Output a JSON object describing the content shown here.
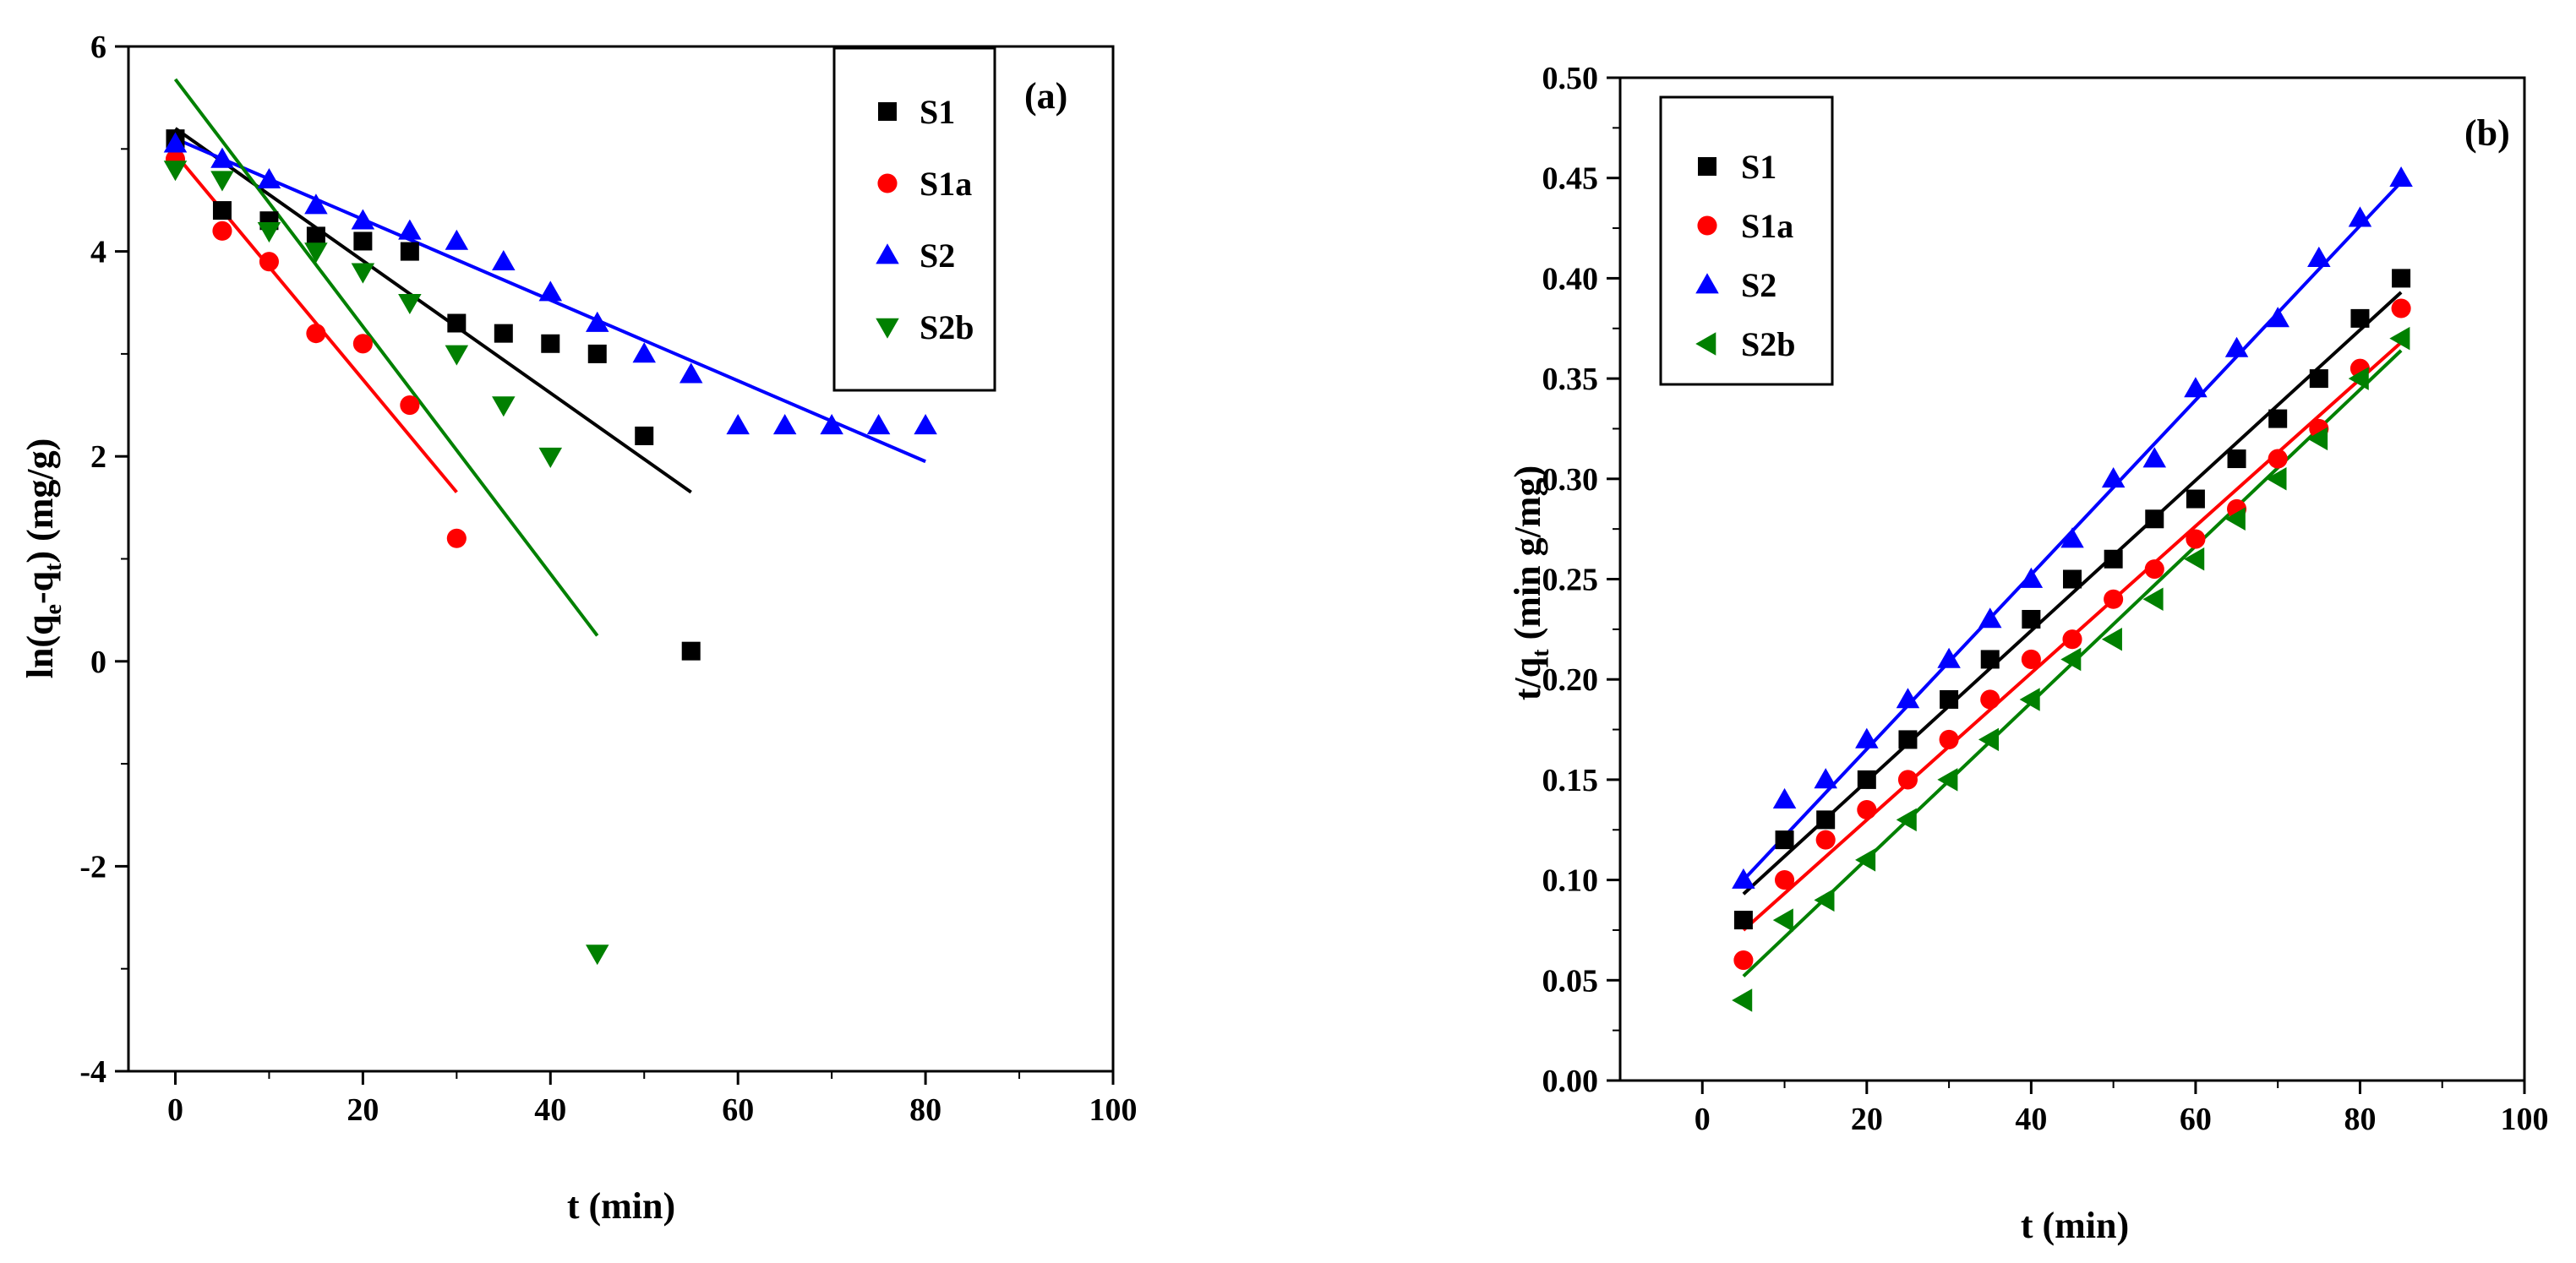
{
  "chart_data": [
    {
      "id": "a",
      "type": "scatter",
      "panel_label": "(a)",
      "title": "",
      "xlabel": "t (min)",
      "ylabel": {
        "prefix": "ln(q",
        "sub1": "e",
        "mid": "-q",
        "sub2": "t",
        "suffix": ") (mg/g)"
      },
      "xlim": [
        -5,
        100
      ],
      "ylim": [
        -4,
        6
      ],
      "xticks": [
        0,
        20,
        40,
        60,
        80,
        100
      ],
      "yticks": [
        -4,
        -2,
        0,
        2,
        4,
        6
      ],
      "grid": false,
      "legend_position": "top-right",
      "series": [
        {
          "name": "S1",
          "color": "#000000",
          "marker": "square",
          "x": [
            0,
            5,
            10,
            15,
            20,
            25,
            30,
            35,
            40,
            45,
            50,
            55
          ],
          "y": [
            5.1,
            4.4,
            4.3,
            4.15,
            4.1,
            4.0,
            3.3,
            3.2,
            3.1,
            3.0,
            2.2,
            0.1
          ],
          "fit": {
            "x": [
              0,
              55
            ],
            "y": [
              5.2,
              1.65
            ]
          }
        },
        {
          "name": "S1a",
          "color": "#ff0000",
          "marker": "circle",
          "x": [
            0,
            5,
            10,
            15,
            20,
            25,
            30
          ],
          "y": [
            4.9,
            4.2,
            3.9,
            3.2,
            3.1,
            2.5,
            1.2
          ],
          "fit": {
            "x": [
              0,
              30
            ],
            "y": [
              4.95,
              1.65
            ]
          }
        },
        {
          "name": "S2",
          "color": "#0000ff",
          "marker": "triangle-up",
          "x": [
            0,
            5,
            10,
            15,
            20,
            25,
            30,
            35,
            40,
            45,
            50,
            55,
            60,
            65,
            70,
            75,
            80
          ],
          "y": [
            5.05,
            4.9,
            4.7,
            4.45,
            4.3,
            4.2,
            4.1,
            3.9,
            3.6,
            3.3,
            3.0,
            2.8,
            2.3,
            2.3,
            2.3,
            2.3,
            2.3
          ],
          "fit": {
            "x": [
              0,
              80
            ],
            "y": [
              5.1,
              1.95
            ]
          }
        },
        {
          "name": "S2b",
          "color": "#008000",
          "marker": "triangle-down",
          "x": [
            0,
            5,
            10,
            15,
            20,
            25,
            30,
            35,
            40,
            45
          ],
          "y": [
            4.8,
            4.7,
            4.2,
            4.0,
            3.8,
            3.5,
            3.0,
            2.5,
            2.0,
            -2.85
          ],
          "fit": {
            "x": [
              0,
              45
            ],
            "y": [
              5.68,
              0.25
            ]
          }
        }
      ]
    },
    {
      "id": "b",
      "type": "scatter",
      "panel_label": "(b)",
      "title": "",
      "xlabel": "t (min)",
      "ylabel": {
        "prefix": "t/q",
        "sub1": "t",
        "mid": "",
        "sub2": "",
        "suffix": " (min g/mg)"
      },
      "xlim": [
        -10,
        100
      ],
      "ylim": [
        0,
        0.5
      ],
      "xticks": [
        0,
        20,
        40,
        60,
        80,
        100
      ],
      "yticks": [
        0.0,
        0.05,
        0.1,
        0.15,
        0.2,
        0.25,
        0.3,
        0.35,
        0.4,
        0.45,
        0.5
      ],
      "ytick_decimals": 2,
      "grid": false,
      "legend_position": "top-left",
      "series": [
        {
          "name": "S1",
          "color": "#000000",
          "marker": "square",
          "x": [
            5,
            10,
            15,
            20,
            25,
            30,
            35,
            40,
            45,
            50,
            55,
            60,
            65,
            70,
            75,
            80,
            85
          ],
          "y": [
            0.08,
            0.12,
            0.13,
            0.15,
            0.17,
            0.19,
            0.21,
            0.23,
            0.25,
            0.26,
            0.28,
            0.29,
            0.31,
            0.33,
            0.35,
            0.38,
            0.4
          ],
          "fit": {
            "x": [
              5,
              85
            ],
            "y": [
              0.093,
              0.393
            ]
          }
        },
        {
          "name": "S1a",
          "color": "#ff0000",
          "marker": "circle",
          "x": [
            5,
            10,
            15,
            20,
            25,
            30,
            35,
            40,
            45,
            50,
            55,
            60,
            65,
            70,
            75,
            80,
            85
          ],
          "y": [
            0.06,
            0.1,
            0.12,
            0.135,
            0.15,
            0.17,
            0.19,
            0.21,
            0.22,
            0.24,
            0.255,
            0.27,
            0.285,
            0.31,
            0.325,
            0.355,
            0.385
          ],
          "fit": {
            "x": [
              5,
              85
            ],
            "y": [
              0.075,
              0.368
            ]
          }
        },
        {
          "name": "S2",
          "color": "#0000ff",
          "marker": "triangle-up",
          "x": [
            5,
            10,
            15,
            20,
            25,
            30,
            35,
            40,
            45,
            50,
            55,
            60,
            65,
            70,
            75,
            80,
            85
          ],
          "y": [
            0.1,
            0.14,
            0.15,
            0.17,
            0.19,
            0.21,
            0.23,
            0.25,
            0.27,
            0.3,
            0.31,
            0.345,
            0.365,
            0.38,
            0.41,
            0.43,
            0.45
          ],
          "fit": {
            "x": [
              5,
              85
            ],
            "y": [
              0.1,
              0.448
            ]
          }
        },
        {
          "name": "S2b",
          "color": "#008000",
          "marker": "triangle-left",
          "x": [
            5,
            10,
            15,
            20,
            25,
            30,
            35,
            40,
            45,
            50,
            55,
            60,
            65,
            70,
            75,
            80,
            85
          ],
          "y": [
            0.04,
            0.08,
            0.09,
            0.11,
            0.13,
            0.15,
            0.17,
            0.19,
            0.21,
            0.22,
            0.24,
            0.26,
            0.28,
            0.3,
            0.32,
            0.35,
            0.37
          ],
          "fit": {
            "x": [
              5,
              85
            ],
            "y": [
              0.052,
              0.364
            ]
          }
        }
      ]
    }
  ]
}
